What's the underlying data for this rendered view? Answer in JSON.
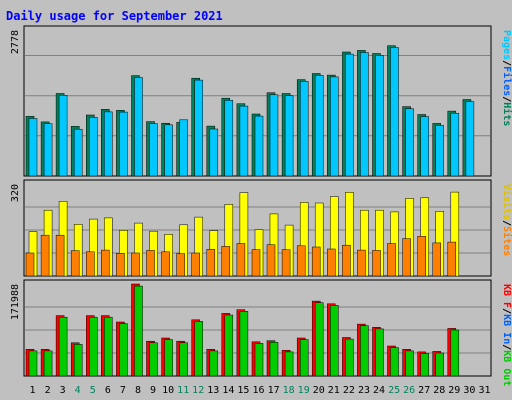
{
  "chart_data": [
    {
      "type": "bar",
      "title": "Daily usage for September 2021",
      "ymax_label": "2778",
      "right_labels": [
        "Pages",
        "/",
        "Files",
        "/",
        "Hits"
      ],
      "categories": [
        "1",
        "2",
        "3",
        "4",
        "5",
        "6",
        "7",
        "8",
        "9",
        "10",
        "11",
        "12",
        "13",
        "14",
        "15",
        "16",
        "17",
        "18",
        "19",
        "20",
        "21",
        "22",
        "23",
        "24",
        "25",
        "26",
        "27",
        "28",
        "29",
        "30",
        "31"
      ],
      "weekend_days": [
        4,
        5,
        11,
        12,
        18,
        19,
        25,
        26
      ],
      "ylim": [
        0,
        2778
      ],
      "series": [
        {
          "name": "Hits",
          "color": "#00805c",
          "values": [
            1135,
            1030,
            1570,
            945,
            1160,
            1270,
            1250,
            1910,
            1035,
            1005,
            1020,
            1860,
            950,
            1480,
            1375,
            1180,
            1585,
            1570,
            1835,
            1950,
            1920,
            2360,
            2390,
            2330,
            2480,
            1320,
            1170,
            1000,
            1235,
            1455,
            0
          ]
        },
        {
          "name": "Files",
          "color": "#00c8ff",
          "values": [
            1095,
            995,
            1535,
            890,
            1115,
            1220,
            1215,
            1875,
            995,
            975,
            1070,
            1825,
            895,
            1440,
            1330,
            1140,
            1545,
            1530,
            1800,
            1915,
            1885,
            2320,
            2350,
            2295,
            2445,
            1280,
            1130,
            960,
            1195,
            1415,
            0
          ]
        },
        {
          "name": "Pages",
          "color": "#00c8ff",
          "values": [
            0,
            0,
            0,
            0,
            0,
            0,
            0,
            0,
            0,
            0,
            0,
            0,
            0,
            0,
            0,
            0,
            0,
            0,
            0,
            0,
            0,
            0,
            0,
            0,
            0,
            0,
            0,
            0,
            0,
            0,
            0
          ]
        }
      ]
    },
    {
      "type": "bar",
      "ymax_label": "320",
      "right_labels": [
        "Visits",
        "/",
        "Sites"
      ],
      "categories": [
        "1",
        "2",
        "3",
        "4",
        "5",
        "6",
        "7",
        "8",
        "9",
        "10",
        "11",
        "12",
        "13",
        "14",
        "15",
        "16",
        "17",
        "18",
        "19",
        "20",
        "21",
        "22",
        "23",
        "24",
        "25",
        "26",
        "27",
        "28",
        "29",
        "30",
        "31"
      ],
      "ylim": [
        0,
        320
      ],
      "series": [
        {
          "name": "Visits",
          "color": "#ffff00",
          "values": [
            154,
            229,
            260,
            180,
            198,
            202,
            159,
            184,
            156,
            145,
            178,
            205,
            158,
            249,
            290,
            161,
            216,
            177,
            256,
            254,
            276,
            291,
            229,
            229,
            223,
            270,
            272,
            225,
            292,
            0,
            0
          ]
        },
        {
          "name": "Sites",
          "color": "#ff8000",
          "values": [
            80,
            142,
            142,
            88,
            84,
            90,
            79,
            80,
            89,
            84,
            78,
            80,
            93,
            103,
            113,
            92,
            109,
            92,
            105,
            101,
            94,
            107,
            90,
            89,
            113,
            130,
            138,
            115,
            118,
            0,
            0
          ]
        }
      ]
    },
    {
      "type": "bar",
      "ymax_label": "171988",
      "right_labels": [
        "KB F",
        "/",
        "KB In",
        "/",
        "KB Out"
      ],
      "categories": [
        "1",
        "2",
        "3",
        "4",
        "5",
        "6",
        "7",
        "8",
        "9",
        "10",
        "11",
        "12",
        "13",
        "14",
        "15",
        "16",
        "17",
        "18",
        "19",
        "20",
        "21",
        "22",
        "23",
        "24",
        "25",
        "26",
        "27",
        "28",
        "29",
        "30",
        "31"
      ],
      "ylim": [
        0,
        171988
      ],
      "series": [
        {
          "name": "KB Out",
          "color": "#ff0000",
          "values": [
            50000,
            50000,
            113000,
            62000,
            113000,
            113000,
            101000,
            171988,
            65000,
            71000,
            65000,
            105000,
            50000,
            117000,
            124000,
            64000,
            66000,
            48000,
            71000,
            140000,
            135000,
            72000,
            97000,
            91000,
            56000,
            50000,
            45000,
            46000,
            89000,
            0,
            0
          ]
        },
        {
          "name": "KB In",
          "color": "#00cc00",
          "values": [
            47000,
            47000,
            110000,
            59000,
            110000,
            110000,
            98000,
            168000,
            62000,
            68000,
            62000,
            102000,
            47000,
            114000,
            121000,
            61000,
            63000,
            45000,
            68000,
            137000,
            132000,
            69000,
            94000,
            88000,
            53000,
            47000,
            42000,
            43000,
            86000,
            0,
            0
          ]
        }
      ]
    }
  ],
  "colors": {
    "outer_bg": "#c0c0c0",
    "plot_bg": "#ffffff",
    "grid": "#808080",
    "title": "#0000ff",
    "weekday_axis": "#000000",
    "weekend_axis": "#00805c"
  }
}
